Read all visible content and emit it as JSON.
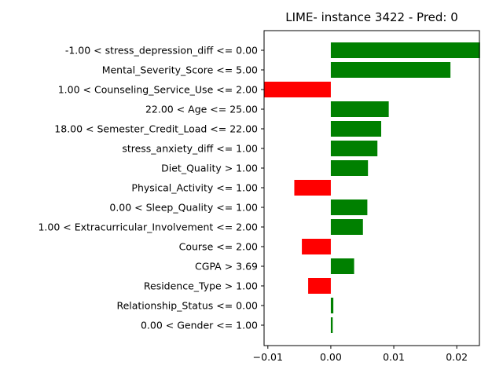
{
  "chart_data": {
    "type": "bar",
    "orientation": "horizontal",
    "title": "LIME- instance 3422 - Pred: 0",
    "xlabel": "",
    "ylabel": "",
    "xlim": [
      -0.0106,
      0.0236
    ],
    "xticks": [
      -0.01,
      0.0,
      0.01,
      0.02
    ],
    "xtick_labels": [
      "−0.01",
      "0.00",
      "0.01",
      "0.02"
    ],
    "grid": false,
    "legend": "none",
    "colors": {
      "positive": "#008000",
      "negative": "#ff0000"
    },
    "categories": [
      "-1.00 < stress_depression_diff <= 0.00",
      "Mental_Severity_Score <= 5.00",
      "1.00 < Counseling_Service_Use <= 2.00",
      "22.00 < Age <= 25.00",
      "18.00 < Semester_Credit_Load <= 22.00",
      "stress_anxiety_diff <= 1.00",
      "Diet_Quality > 1.00",
      "Physical_Activity <= 1.00",
      "0.00 < Sleep_Quality <= 1.00",
      "1.00 < Extracurricular_Involvement <= 2.00",
      "Course <= 2.00",
      "CGPA > 3.69",
      "Residence_Type > 1.00",
      "Relationship_Status <= 0.00",
      "0.00 < Gender <= 1.00"
    ],
    "values": [
      0.0237,
      0.019,
      -0.0106,
      0.0092,
      0.008,
      0.0074,
      0.0059,
      -0.0058,
      0.0058,
      0.0051,
      -0.0046,
      0.0037,
      -0.0036,
      0.0004,
      0.0003
    ]
  }
}
